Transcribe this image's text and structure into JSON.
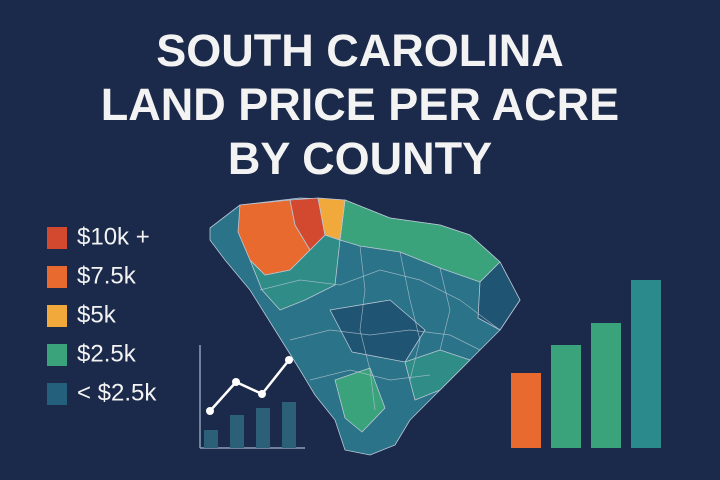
{
  "header": {
    "title_lines": [
      "SOUTH CAROLINA",
      "LAND PRICE PER ACRE",
      "BY COUNTY"
    ]
  },
  "legend": {
    "items": [
      {
        "label": "$10k +",
        "color": "#d2492f"
      },
      {
        "label": "$7.5k",
        "color": "#e86a2e"
      },
      {
        "label": "$5k",
        "color": "#f2a93b"
      },
      {
        "label": "$2.5k",
        "color": "#3aa37c"
      },
      {
        "label": "< $2.5k",
        "color": "#245f7c"
      }
    ]
  }
}
